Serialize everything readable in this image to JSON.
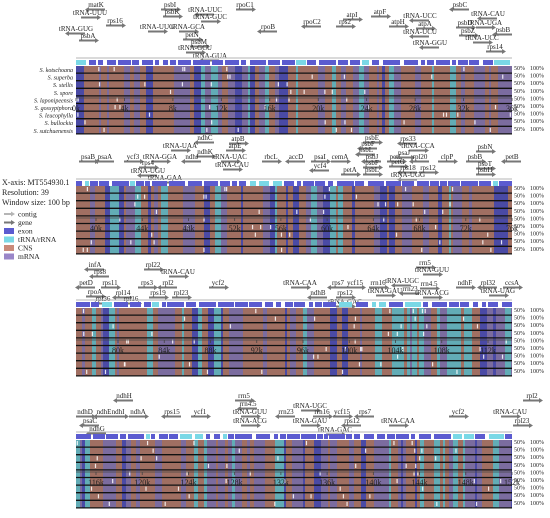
{
  "colors": {
    "exon": "#5b5bd0",
    "trna": "#7ad8e6",
    "cns": "#c98a7a",
    "mrna": "#9a86c8",
    "gene_arrow": "#777777",
    "contig": "#b5b5b5",
    "track_bg": "#111111"
  },
  "legend": {
    "xaxis": "X-axis: MT554930.1",
    "resolution": "Resolution: 39",
    "window": "Window size: 100 bp",
    "items": [
      {
        "label": "contig",
        "key": "contig"
      },
      {
        "label": "gene",
        "key": "gene_arrow"
      },
      {
        "label": "exon",
        "key": "exon"
      },
      {
        "label": "tRNA/rRNA",
        "key": "trna"
      },
      {
        "label": "CNS",
        "key": "cns"
      },
      {
        "label": "mRNA",
        "key": "mrna"
      }
    ]
  },
  "species": [
    "S. kotschoana",
    "S. superba",
    "S. stellis",
    "S. spore",
    "S. laponipeensis",
    "S. gossypiphora",
    "S. leucophylla",
    "S. bullockia",
    "S. sutchuenensis"
  ],
  "pct_labels": [
    "50%",
    "100%"
  ],
  "panels": [
    {
      "ticks": [
        "0k",
        "4k",
        "8k",
        "12k",
        "16k",
        "20k",
        "24k",
        "28k",
        "32k",
        "36k"
      ],
      "annots": [
        [
          "matK",
          96,
          7
        ],
        [
          "psbI",
          170,
          7
        ],
        [
          "rpoC1",
          245,
          7
        ],
        [
          "psbC",
          460,
          7
        ],
        [
          "tRNA-UUU",
          90,
          15
        ],
        [
          "psbK",
          172,
          14
        ],
        [
          "tRNA-UUC",
          205,
          12
        ],
        [
          "atpI",
          352,
          17
        ],
        [
          "atpF",
          380,
          14
        ],
        [
          "tRNA-CAU",
          488,
          16
        ],
        [
          "rps16",
          115,
          23
        ],
        [
          "tRNA-GUC",
          210,
          19
        ],
        [
          "rpoC2",
          312,
          24
        ],
        [
          "rps2",
          345,
          24
        ],
        [
          "atpH",
          398,
          24
        ],
        [
          "tRNA-UCC",
          420,
          18
        ],
        [
          "psbD",
          465,
          25
        ],
        [
          "tRNA-UGA",
          485,
          25
        ],
        [
          "tRNA-GUG",
          76,
          31
        ],
        [
          "tRNA-UUG",
          157,
          29
        ],
        [
          "tRNA-GCA",
          188,
          29
        ],
        [
          "rpoB",
          268,
          29
        ],
        [
          "atpA",
          425,
          26
        ],
        [
          "psbZ",
          468,
          33
        ],
        [
          "psbB",
          503,
          32
        ],
        [
          "psbA",
          88,
          38
        ],
        [
          "petN",
          192,
          37
        ],
        [
          "tRNA-UCU",
          420,
          34
        ],
        [
          "tRNA-UCC",
          482,
          40
        ],
        [
          "psbM",
          199,
          44
        ],
        [
          "tRNA-GGU",
          430,
          45
        ],
        [
          "rps14",
          495,
          49
        ],
        [
          "tRNA-GCU",
          195,
          50
        ],
        [
          "tRNA-GUA",
          210,
          58
        ]
      ]
    },
    {
      "ticks": [
        "40k",
        "44k",
        "48k",
        "52k",
        "56k",
        "60k",
        "64k",
        "68k",
        "72k",
        "76k"
      ],
      "annots": [
        [
          "ndhC",
          205,
          140
        ],
        [
          "atpB",
          238,
          141
        ],
        [
          "psbE",
          372,
          140
        ],
        [
          "rps33",
          408,
          141
        ],
        [
          "tRNA-UAA",
          180,
          148
        ],
        [
          "atpE",
          235,
          148
        ],
        [
          "psbF",
          368,
          146
        ],
        [
          "tRNA-CCA",
          418,
          148
        ],
        [
          "ndhK",
          205,
          154
        ],
        [
          "psbL",
          366,
          152
        ],
        [
          "psbN",
          485,
          149
        ],
        [
          "psaB",
          88,
          159
        ],
        [
          "psaA",
          105,
          159
        ],
        [
          "ycf3",
          133,
          159
        ],
        [
          "tRNA-GGA",
          160,
          159
        ],
        [
          "ndhJ",
          192,
          159
        ],
        [
          "tRNA-UAC",
          230,
          159
        ],
        [
          "rbcL",
          271,
          159
        ],
        [
          "accD",
          296,
          159
        ],
        [
          "psaI",
          320,
          159
        ],
        [
          "cemA",
          340,
          159
        ],
        [
          "psbJ",
          372,
          159
        ],
        [
          "petL",
          396,
          159
        ],
        [
          "psaJ",
          404,
          155
        ],
        [
          "rpl20",
          420,
          159
        ],
        [
          "clpP",
          447,
          159
        ],
        [
          "psbB",
          475,
          159
        ],
        [
          "petB",
          512,
          159
        ],
        [
          "rps4",
          148,
          165
        ],
        [
          "tRNA-CAU",
          232,
          167
        ],
        [
          "ycf4",
          320,
          168
        ],
        [
          "psbF",
          372,
          165
        ],
        [
          "petG",
          398,
          164
        ],
        [
          "rps18",
          408,
          170
        ],
        [
          "rps12",
          428,
          170
        ],
        [
          "psbT",
          485,
          166
        ],
        [
          "tRNA-UGU",
          148,
          173
        ],
        [
          "petA",
          350,
          172
        ],
        [
          "psbL",
          372,
          172
        ],
        [
          "tRNA-UGG",
          408,
          177
        ],
        [
          "psbH",
          485,
          172
        ],
        [
          "tRNA-GAA",
          165,
          180
        ]
      ]
    },
    {
      "ticks": [
        "80k",
        "84k",
        "88k",
        "92k",
        "96k",
        "100k",
        "104k",
        "108k",
        "112k"
      ],
      "annots": [
        [
          "infA",
          95,
          267
        ],
        [
          "rpl22",
          153,
          267
        ],
        [
          "rrn5",
          425,
          265
        ],
        [
          "rps8",
          100,
          274
        ],
        [
          "tRNA-CAU",
          178,
          274
        ],
        [
          "tRNA-GUU",
          432,
          272
        ],
        [
          "petD",
          86,
          285
        ],
        [
          "rps11",
          110,
          285
        ],
        [
          "rps3",
          147,
          285
        ],
        [
          "rpl2",
          168,
          285
        ],
        [
          "ycf2",
          218,
          285
        ],
        [
          "tRNA-CAA",
          300,
          285
        ],
        [
          "rps7",
          338,
          285
        ],
        [
          "ycf15",
          355,
          285
        ],
        [
          "rrn16",
          378,
          285
        ],
        [
          "tRNA-UGC",
          402,
          283
        ],
        [
          "rrn4.5",
          429,
          286
        ],
        [
          "ndhF",
          465,
          285
        ],
        [
          "rpl32",
          488,
          285
        ],
        [
          "ccsA",
          512,
          285
        ],
        [
          "rpoA",
          95,
          294
        ],
        [
          "rpl14",
          123,
          295
        ],
        [
          "rps19",
          158,
          295
        ],
        [
          "rpl23",
          181,
          295
        ],
        [
          "ndhB",
          318,
          295
        ],
        [
          "rps12",
          345,
          295
        ],
        [
          "tRNA-GAU",
          385,
          293
        ],
        [
          "rrn23",
          410,
          291
        ],
        [
          "tRNA-ACG",
          432,
          295
        ],
        [
          "tRNA-UAG",
          498,
          293
        ],
        [
          "rpl36",
          103,
          301
        ],
        [
          "rpl16",
          131,
          301
        ],
        [
          "tRNA-GAC",
          345,
          304
        ]
      ]
    },
    {
      "ticks": [
        "116k",
        "120k",
        "124k",
        "128k",
        "132k",
        "136k",
        "140k",
        "144k",
        "148k",
        "152k"
      ],
      "annots": [
        [
          "ndhH",
          124,
          398
        ],
        [
          "rrn5",
          244,
          398
        ],
        [
          "rpl2",
          532,
          398
        ],
        [
          "rrn4.5",
          248,
          406
        ],
        [
          "tRNA-UGC",
          310,
          408
        ],
        [
          "ndhD",
          85,
          414
        ],
        [
          "ndhE",
          104,
          414
        ],
        [
          "ndhI",
          118,
          414
        ],
        [
          "ndhA",
          138,
          414
        ],
        [
          "rps15",
          172,
          414
        ],
        [
          "ycf1",
          200,
          414
        ],
        [
          "tRNA-GUU",
          250,
          414
        ],
        [
          "rrn23",
          286,
          414
        ],
        [
          "rrn16",
          322,
          414
        ],
        [
          "ycf15",
          342,
          414
        ],
        [
          "rps7",
          365,
          414
        ],
        [
          "ycf2",
          458,
          414
        ],
        [
          "tRNA-CAU",
          510,
          414
        ],
        [
          "psaC",
          90,
          423
        ],
        [
          "tRNA-ACG",
          250,
          423
        ],
        [
          "tRNA-GAU",
          310,
          423
        ],
        [
          "rps12",
          352,
          423
        ],
        [
          "tRNA-CAA",
          398,
          423
        ],
        [
          "rpl23",
          522,
          423
        ],
        [
          "ndhG",
          97,
          431
        ],
        [
          "tRNA-GAC",
          335,
          432
        ]
      ]
    }
  ]
}
